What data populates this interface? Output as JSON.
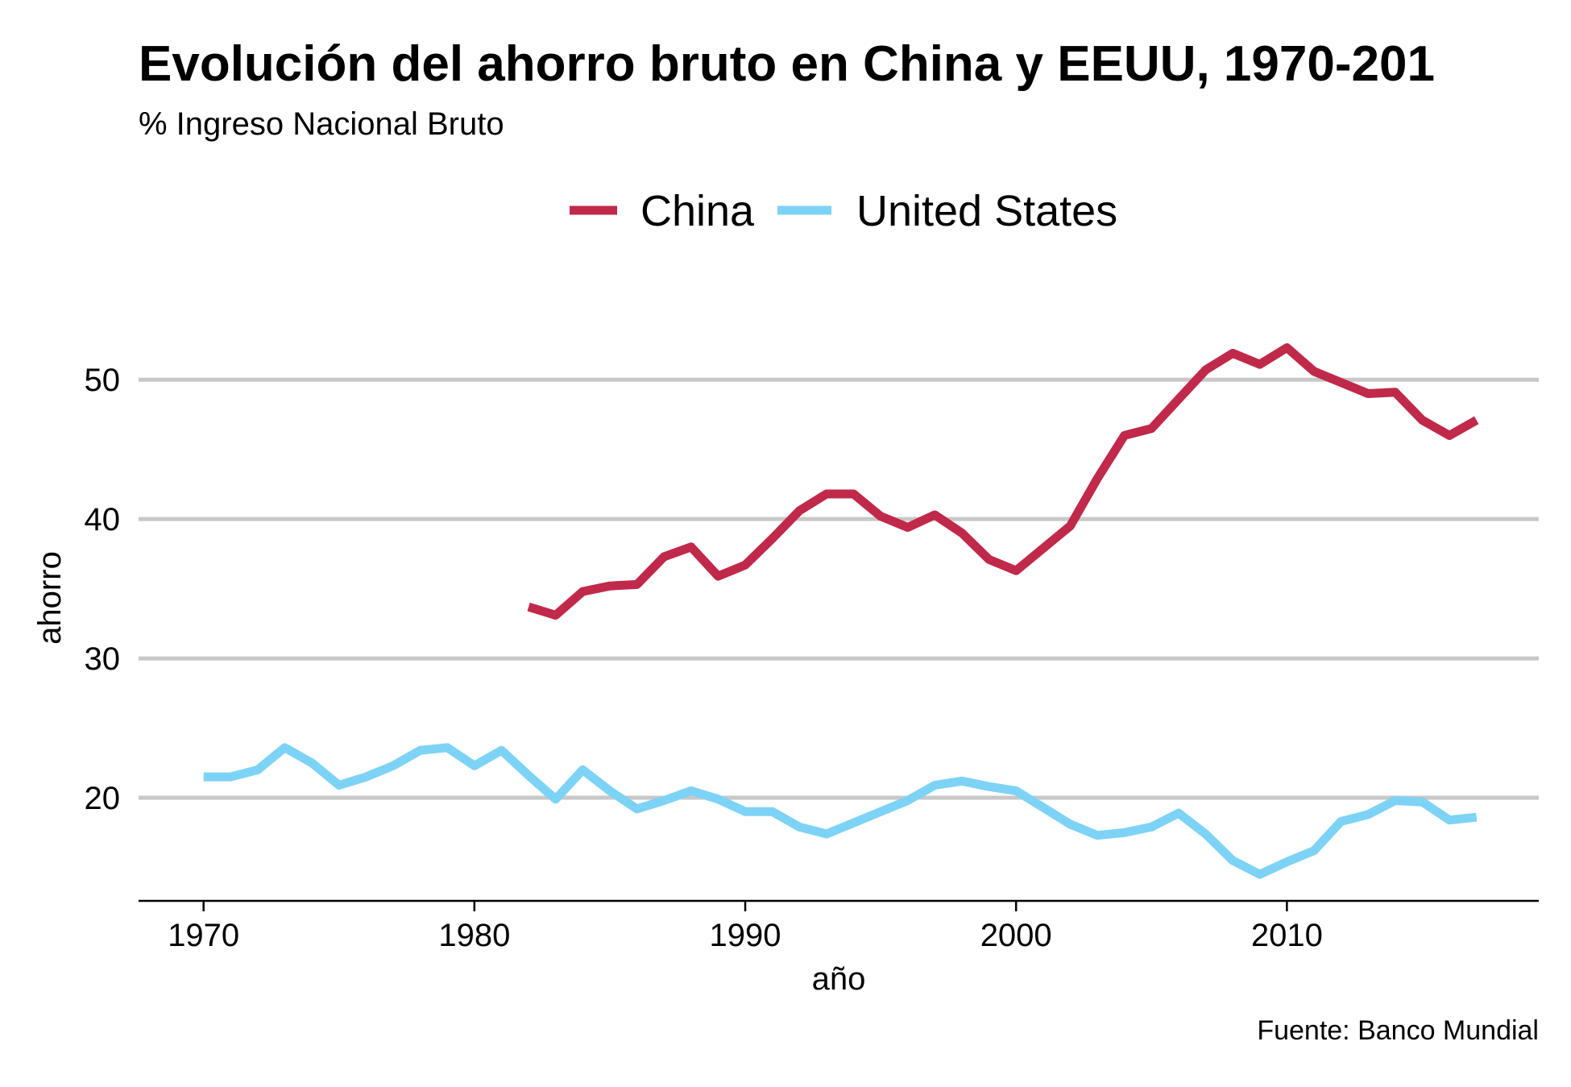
{
  "chart_data": {
    "type": "line",
    "title": "Evolución del ahorro bruto en China y EEUU, 1970-201",
    "subtitle": "% Ingreso Nacional Bruto",
    "xlabel": "año",
    "ylabel": "ahorro",
    "caption": "Fuente: Banco Mundial",
    "x_ticks": [
      "1970",
      "1980",
      "1990",
      "2000",
      "2010"
    ],
    "y_ticks": [
      "20",
      "30",
      "40",
      "50"
    ],
    "xlim": [
      1967.6,
      2019.3
    ],
    "ylim": [
      12.6,
      57.3
    ],
    "grid": "horizontal",
    "legend_position": "top",
    "series": [
      {
        "name": "China",
        "color": "#c0294a",
        "x": [
          1982,
          1983,
          1984,
          1985,
          1986,
          1987,
          1988,
          1989,
          1990,
          1991,
          1992,
          1993,
          1994,
          1995,
          1996,
          1997,
          1998,
          1999,
          2000,
          2001,
          2002,
          2003,
          2004,
          2005,
          2006,
          2007,
          2008,
          2009,
          2010,
          2011,
          2012,
          2013,
          2014,
          2015,
          2016,
          2017
        ],
        "values": [
          33.7,
          33.1,
          34.8,
          35.2,
          35.3,
          37.3,
          38.0,
          35.9,
          36.7,
          38.6,
          40.6,
          41.8,
          41.8,
          40.2,
          39.4,
          40.3,
          39.0,
          37.1,
          36.3,
          37.9,
          39.5,
          42.9,
          46.0,
          46.5,
          48.6,
          50.7,
          51.9,
          51.1,
          52.3,
          50.6,
          49.8,
          49.0,
          49.1,
          47.1,
          46.0,
          47.1
        ]
      },
      {
        "name": "United States",
        "color": "#7dd3f5",
        "x": [
          1970,
          1971,
          1972,
          1973,
          1974,
          1975,
          1976,
          1977,
          1978,
          1979,
          1980,
          1981,
          1982,
          1983,
          1984,
          1985,
          1986,
          1987,
          1988,
          1989,
          1990,
          1991,
          1992,
          1993,
          1994,
          1995,
          1996,
          1997,
          1998,
          1999,
          2000,
          2001,
          2002,
          2003,
          2004,
          2005,
          2006,
          2007,
          2008,
          2009,
          2010,
          2011,
          2012,
          2013,
          2014,
          2015,
          2016,
          2017
        ],
        "values": [
          21.5,
          21.5,
          22.0,
          23.6,
          22.5,
          20.9,
          21.5,
          22.3,
          23.4,
          23.6,
          22.3,
          23.4,
          21.6,
          19.9,
          22.0,
          20.5,
          19.2,
          19.8,
          20.5,
          19.9,
          19.0,
          19.0,
          17.9,
          17.4,
          18.2,
          19.0,
          19.8,
          20.9,
          21.2,
          20.8,
          20.5,
          19.3,
          18.1,
          17.3,
          17.5,
          17.9,
          18.9,
          17.4,
          15.5,
          14.5,
          15.4,
          16.2,
          18.3,
          18.8,
          19.8,
          19.7,
          18.4,
          18.6
        ]
      }
    ]
  }
}
